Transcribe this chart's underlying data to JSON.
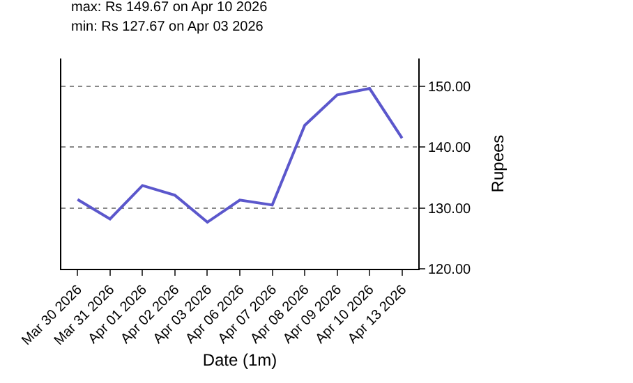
{
  "chart_data": {
    "type": "line",
    "annotations": [
      "max: Rs 149.67 on Apr 10 2026",
      "min: Rs 127.67 on Apr 03 2026"
    ],
    "xlabel": "Date (1m)",
    "ylabel": "Rupees",
    "categories": [
      "Mar 30 2026",
      "Mar 31 2026",
      "Apr 01 2026",
      "Apr 02 2026",
      "Apr 03 2026",
      "Apr 06 2026",
      "Apr 07 2026",
      "Apr 08 2026",
      "Apr 09 2026",
      "Apr 10 2026",
      "Apr 13 2026"
    ],
    "series": [
      {
        "color": "#5b57cc",
        "values": [
          131.4,
          128.2,
          133.7,
          132.1,
          127.67,
          131.3,
          130.5,
          143.6,
          148.6,
          149.67,
          141.5
        ]
      }
    ],
    "ylim": [
      120,
      154.6
    ],
    "yticks": [
      {
        "value": 120,
        "label": "120.00"
      },
      {
        "value": 130,
        "label": "130.00"
      },
      {
        "value": 140,
        "label": "140.00"
      },
      {
        "value": 150,
        "label": "150.00"
      }
    ],
    "grid": "y",
    "marker": "none",
    "line_style": "solid"
  }
}
